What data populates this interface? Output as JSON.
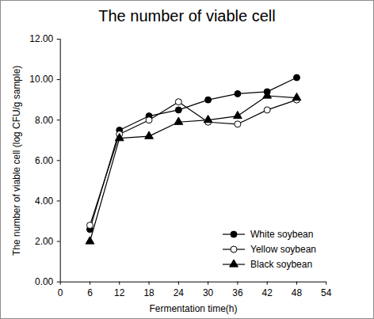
{
  "chart_data": {
    "type": "line",
    "title": "The number of viable cell",
    "x_label": "Fermentation time(h)",
    "y_label": "The number of viable cell (log CFU/g sample)",
    "x": [
      6,
      12,
      18,
      24,
      30,
      36,
      42,
      48
    ],
    "series": [
      {
        "name": "White soybean",
        "color": "#000000",
        "marker": "circle",
        "values": [
          2.6,
          7.5,
          8.2,
          8.5,
          9.0,
          9.3,
          9.4,
          10.1
        ]
      },
      {
        "name": "Yellow soybean",
        "color": "#000000",
        "marker": "circle-open",
        "values": [
          2.8,
          7.3,
          8.0,
          8.9,
          7.9,
          7.8,
          8.5,
          9.0
        ]
      },
      {
        "name": "Black soybean",
        "color": "#000000",
        "marker": "triangle",
        "values": [
          2.0,
          7.1,
          7.2,
          7.9,
          8.0,
          8.2,
          9.2,
          9.1
        ]
      }
    ],
    "xlim": [
      0,
      54
    ],
    "xticks": [
      0,
      6,
      12,
      18,
      24,
      30,
      36,
      42,
      48,
      54
    ],
    "ylim": [
      0,
      12
    ],
    "yticks": [
      {
        "value": 0,
        "label": "0.00"
      },
      {
        "value": 2,
        "label": "2.00"
      },
      {
        "value": 4,
        "label": "4.00"
      },
      {
        "value": 6,
        "label": "6.00"
      },
      {
        "value": 8,
        "label": "8.00"
      },
      {
        "value": 10,
        "label": "10.00"
      },
      {
        "value": 12,
        "label": "12.00"
      }
    ],
    "grid": false,
    "legend": "lower right"
  }
}
